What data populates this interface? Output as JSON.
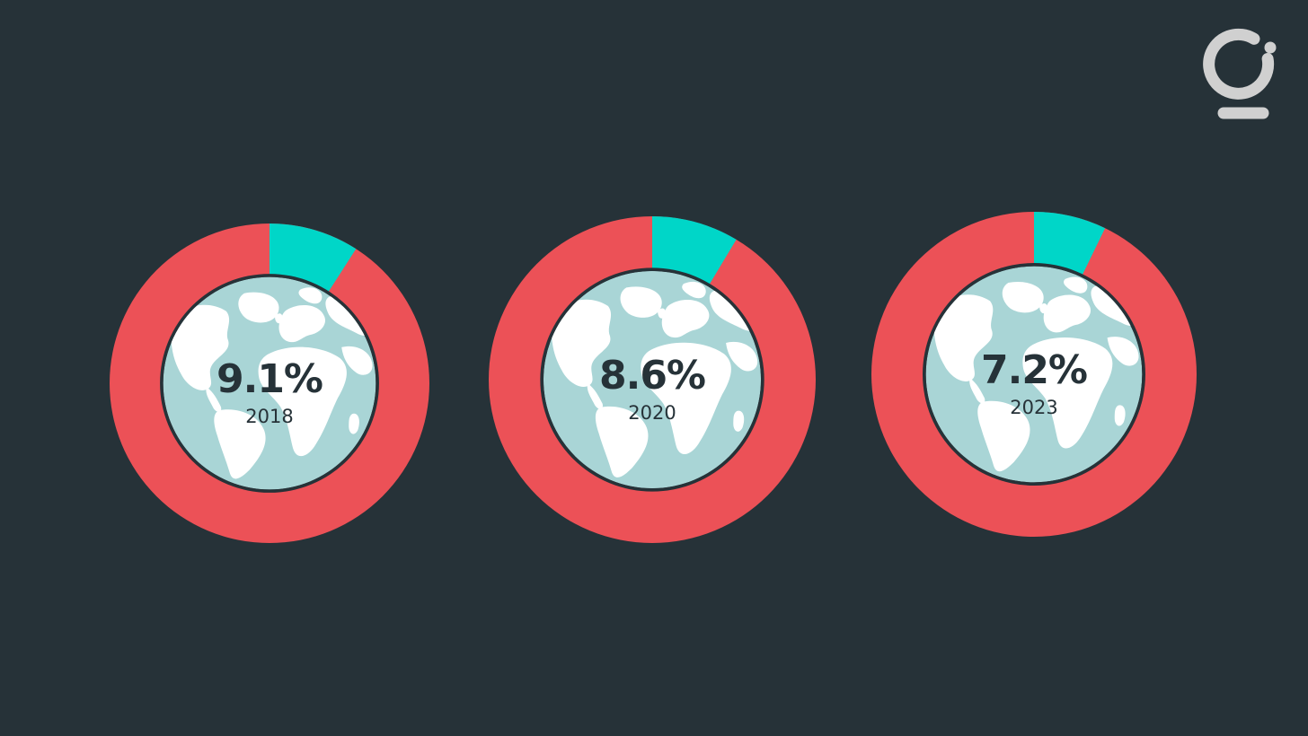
{
  "colors": {
    "background": "#263238",
    "share": "#00d6c8",
    "remainder": "#ec5157",
    "ring_border": "#263238",
    "globe_ocean": "#a9d5d6",
    "globe_land": "#ffffff",
    "logo": "#d0d0d0"
  },
  "logo": {
    "icon": "brand-logo-icon"
  },
  "chart_data": {
    "type": "pie",
    "variant": "donut",
    "charts": [
      {
        "value": 9.1,
        "unit": "%",
        "label": "9.1%",
        "category": "2018"
      },
      {
        "value": 8.6,
        "unit": "%",
        "label": "8.6%",
        "category": "2020"
      },
      {
        "value": 7.2,
        "unit": "%",
        "label": "7.2%",
        "category": "2023"
      }
    ],
    "center_icon": "globe-icon"
  }
}
